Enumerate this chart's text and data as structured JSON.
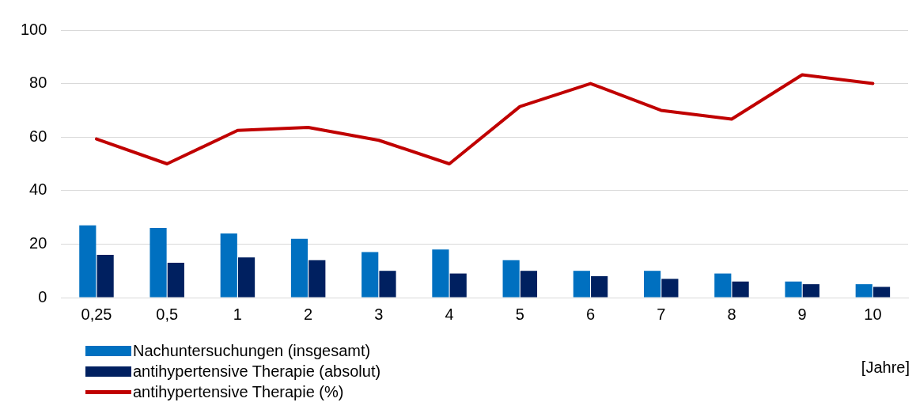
{
  "chart_data": {
    "type": "bar",
    "xlabel": "[Jahre]",
    "categories": [
      "0,25",
      "0,5",
      "1",
      "2",
      "3",
      "4",
      "5",
      "6",
      "7",
      "8",
      "9",
      "10"
    ],
    "series": [
      {
        "name": "Nachuntersuchungen (insgesamt)",
        "color": "#0070c0",
        "values": [
          27,
          26,
          24,
          22,
          17,
          18,
          14,
          10,
          10,
          9,
          6,
          5
        ]
      },
      {
        "name": "antihypertensive Therapie (absolut)",
        "color": "#002060",
        "values": [
          16,
          13,
          15,
          14,
          10,
          9,
          10,
          8,
          7,
          6,
          5,
          4
        ]
      },
      {
        "name": "antihypertensive Therapie (%)",
        "type": "line",
        "color": "#c00000",
        "values": [
          59.3,
          50,
          62.5,
          63.6,
          58.8,
          50,
          71.4,
          80,
          70,
          66.7,
          83.3,
          80
        ]
      }
    ],
    "ylim": [
      0,
      100
    ],
    "yticks": [
      0,
      20,
      40,
      60,
      80,
      100
    ],
    "grid": "y",
    "legend": "bottom left",
    "marker": "none"
  }
}
